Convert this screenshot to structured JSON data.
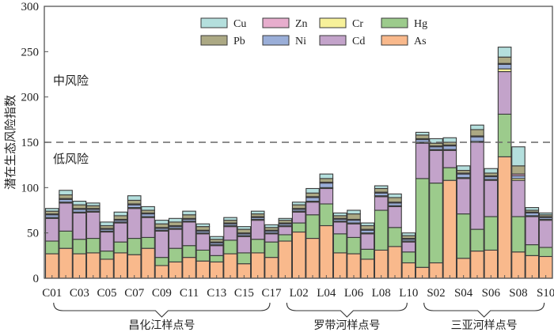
{
  "chart_data": {
    "type": "bar",
    "stacked": true,
    "title": "",
    "xlabel": "",
    "ylabel": "潜在生态风险指数",
    "ylim": [
      0,
      300
    ],
    "yticks": [
      0,
      50,
      100,
      150,
      200,
      250,
      300
    ],
    "grid": false,
    "legend_position": "top-right",
    "threshold": {
      "value": 150,
      "style": "dashed",
      "label_above": "中风险",
      "label_below": "低风险"
    },
    "categories": [
      "C01",
      "C02",
      "C03",
      "C04",
      "C05",
      "C06",
      "C07",
      "C08",
      "C09",
      "C10",
      "C11",
      "C12",
      "C13",
      "C14",
      "C15",
      "C16",
      "C17",
      "L01",
      "L02",
      "L03",
      "L04",
      "L05",
      "L06",
      "L07",
      "L08",
      "L09",
      "L10",
      "S01",
      "S02",
      "S03",
      "S04",
      "S05",
      "S06",
      "S07",
      "S08",
      "S09",
      "S10"
    ],
    "tick_labels": [
      "C01",
      "C03",
      "C05",
      "C07",
      "C09",
      "C11",
      "C13",
      "C15",
      "C17",
      "L02",
      "L04",
      "L06",
      "L08",
      "L10",
      "S02",
      "S04",
      "S06",
      "S08",
      "S10"
    ],
    "groups": [
      {
        "label": "昌化江样点号",
        "from": "C01",
        "to": "C17"
      },
      {
        "label": "罗带河样点号",
        "from": "L01",
        "to": "L10"
      },
      {
        "label": "三亚河样点号",
        "from": "S01",
        "to": "S10"
      }
    ],
    "legend": [
      "Cu",
      "Zn",
      "Cr",
      "Hg",
      "Pb",
      "Ni",
      "Cd",
      "As"
    ],
    "series": [
      {
        "name": "As",
        "color": "#f9b98c",
        "values": [
          27,
          33,
          27,
          28,
          21,
          28,
          26,
          33,
          14,
          18,
          23,
          19,
          18,
          27,
          16,
          28,
          23,
          41,
          51,
          44,
          58,
          28,
          27,
          21,
          31,
          35,
          17,
          12,
          17,
          108,
          22,
          30,
          31,
          134,
          29,
          25,
          24
        ]
      },
      {
        "name": "Hg",
        "color": "#9ccb8c",
        "values": [
          14,
          19,
          16,
          16,
          9,
          12,
          18,
          12,
          9,
          15,
          13,
          12,
          7,
          15,
          12,
          15,
          17,
          7,
          10,
          26,
          24,
          21,
          18,
          11,
          44,
          21,
          12,
          98,
          88,
          14,
          49,
          24,
          37,
          47,
          39,
          12,
          10
        ]
      },
      {
        "name": "Cd",
        "color": "#c3a3ca",
        "values": [
          25,
          31,
          29,
          29,
          21,
          21,
          33,
          22,
          29,
          21,
          26,
          18,
          11,
          15,
          18,
          21,
          9,
          9,
          12,
          14,
          17,
          13,
          15,
          17,
          15,
          23,
          11,
          39,
          36,
          19,
          39,
          96,
          40,
          47,
          40,
          31,
          30
        ]
      },
      {
        "name": "Cr",
        "color": "#f7f19a",
        "values": [
          1,
          1,
          1,
          1,
          1,
          1,
          1,
          1,
          1,
          1,
          1,
          1,
          1,
          1,
          1,
          1,
          1,
          1,
          1,
          1,
          1,
          1,
          1,
          1,
          1,
          1,
          1,
          1,
          1,
          1,
          1,
          1,
          1,
          3,
          2,
          1,
          1
        ]
      },
      {
        "name": "Ni",
        "color": "#9aaed8",
        "values": [
          3,
          3,
          3,
          2,
          2,
          2,
          3,
          3,
          2,
          2,
          2,
          2,
          2,
          2,
          2,
          2,
          2,
          2,
          2,
          4,
          5,
          2,
          3,
          3,
          3,
          3,
          2,
          3,
          3,
          4,
          4,
          5,
          3,
          5,
          3,
          3,
          2
        ]
      },
      {
        "name": "Zn",
        "color": "#e7adcd",
        "values": [
          1,
          1,
          1,
          1,
          1,
          1,
          1,
          1,
          1,
          1,
          1,
          1,
          1,
          1,
          1,
          1,
          1,
          1,
          1,
          1,
          1,
          1,
          1,
          1,
          1,
          1,
          1,
          1,
          1,
          1,
          1,
          1,
          1,
          1,
          2,
          1,
          1
        ]
      },
      {
        "name": "Pb",
        "color": "#aca984",
        "values": [
          3,
          4,
          4,
          3,
          3,
          4,
          4,
          3,
          4,
          4,
          4,
          4,
          3,
          3,
          4,
          3,
          3,
          3,
          4,
          4,
          4,
          3,
          6,
          4,
          4,
          5,
          3,
          4,
          3,
          3,
          3,
          7,
          3,
          7,
          9,
          2,
          2
        ]
      },
      {
        "name": "Cu",
        "color": "#b4dfdd",
        "values": [
          3,
          5,
          4,
          3,
          4,
          4,
          5,
          4,
          4,
          4,
          4,
          3,
          3,
          3,
          3,
          3,
          3,
          2,
          3,
          5,
          5,
          3,
          4,
          3,
          3,
          4,
          3,
          3,
          5,
          5,
          5,
          5,
          5,
          11,
          21,
          3,
          2
        ]
      }
    ]
  }
}
